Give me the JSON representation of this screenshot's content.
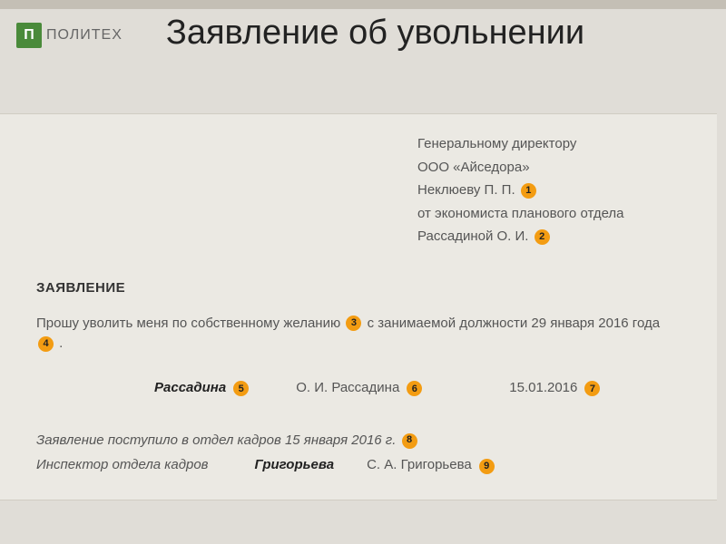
{
  "logo": {
    "icon_text": "П",
    "text": "ПОЛИТЕХ",
    "bg_color": "#4a8a3a"
  },
  "title": "Заявление об увольнении",
  "addressee": {
    "line1": "Генеральному директору",
    "line2": "ООО «Айседора»",
    "line3_name": "Неклюеву П. П.",
    "line4": "от экономиста планового отдела",
    "line5_name": "Рассадиной О. И."
  },
  "section_title": "ЗАЯВЛЕНИЕ",
  "body": {
    "part1": "Прошу уволить меня по собственному желанию",
    "part2": "с занимаемой должности 29 января 2016 года",
    "part3": "."
  },
  "signature": {
    "sig": "Рассадина",
    "name": "О. И. Рассадина",
    "date": "15.01.2016"
  },
  "footer": {
    "received_part1": "Заявление поступило в отдел кадров 15 января 2016 г.",
    "inspector_label": "Инспектор отдела кадров",
    "inspector_sig": "Григорьева",
    "inspector_name": "С. А. Григорьева"
  },
  "markers": {
    "m1": "1",
    "m2": "2",
    "m3": "3",
    "m4": "4",
    "m5": "5",
    "m6": "6",
    "m7": "7",
    "m8": "8",
    "m9": "9"
  },
  "colors": {
    "marker_bg": "#f39c12",
    "page_bg": "#e0ddd7",
    "doc_bg": "#ebe9e3",
    "text": "#555"
  }
}
